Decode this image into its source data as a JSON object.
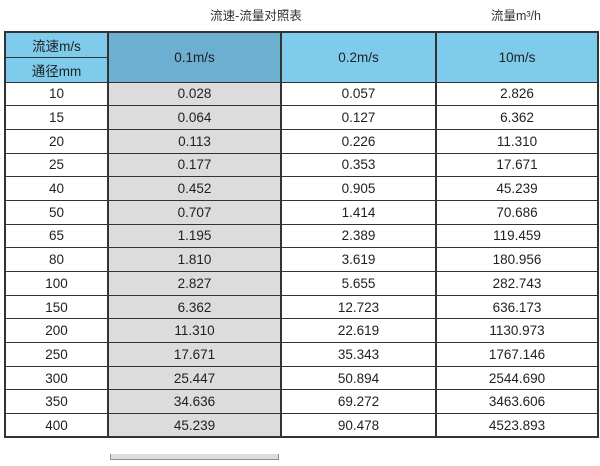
{
  "titles": {
    "left": "流速-流量对照表",
    "right": "流量m³/h"
  },
  "header": {
    "corner_top": "流速m/s",
    "corner_bottom": "通径mm",
    "velocity_columns": [
      "0.1m/s",
      "0.2m/s",
      "10m/s"
    ],
    "highlighted_column": "0.1m/s"
  },
  "colors": {
    "header_blue": "#7fcbec",
    "highlight_blue": "#6cafd0",
    "highlight_grey": "#dcdcdc",
    "border": "#333333"
  },
  "chart_data": {
    "type": "table",
    "title": "流速-流量对照表",
    "flow_unit_label": "流量m³/h",
    "columns": [
      "通径mm",
      "0.1m/s",
      "0.2m/s",
      "10m/s"
    ],
    "rows": [
      [
        "10",
        "0.028",
        "0.057",
        "2.826"
      ],
      [
        "15",
        "0.064",
        "0.127",
        "6.362"
      ],
      [
        "20",
        "0.113",
        "0.226",
        "11.310"
      ],
      [
        "25",
        "0.177",
        "0.353",
        "17.671"
      ],
      [
        "40",
        "0.452",
        "0.905",
        "45.239"
      ],
      [
        "50",
        "0.707",
        "1.414",
        "70.686"
      ],
      [
        "65",
        "1.195",
        "2.389",
        "119.459"
      ],
      [
        "80",
        "1.810",
        "3.619",
        "180.956"
      ],
      [
        "100",
        "2.827",
        "5.655",
        "282.743"
      ],
      [
        "150",
        "6.362",
        "12.723",
        "636.173"
      ],
      [
        "200",
        "11.310",
        "22.619",
        "1130.973"
      ],
      [
        "250",
        "17.671",
        "35.343",
        "1767.146"
      ],
      [
        "300",
        "25.447",
        "50.894",
        "2544.690"
      ],
      [
        "350",
        "34.636",
        "69.272",
        "3463.606"
      ],
      [
        "400",
        "45.239",
        "90.478",
        "4523.893"
      ]
    ]
  }
}
